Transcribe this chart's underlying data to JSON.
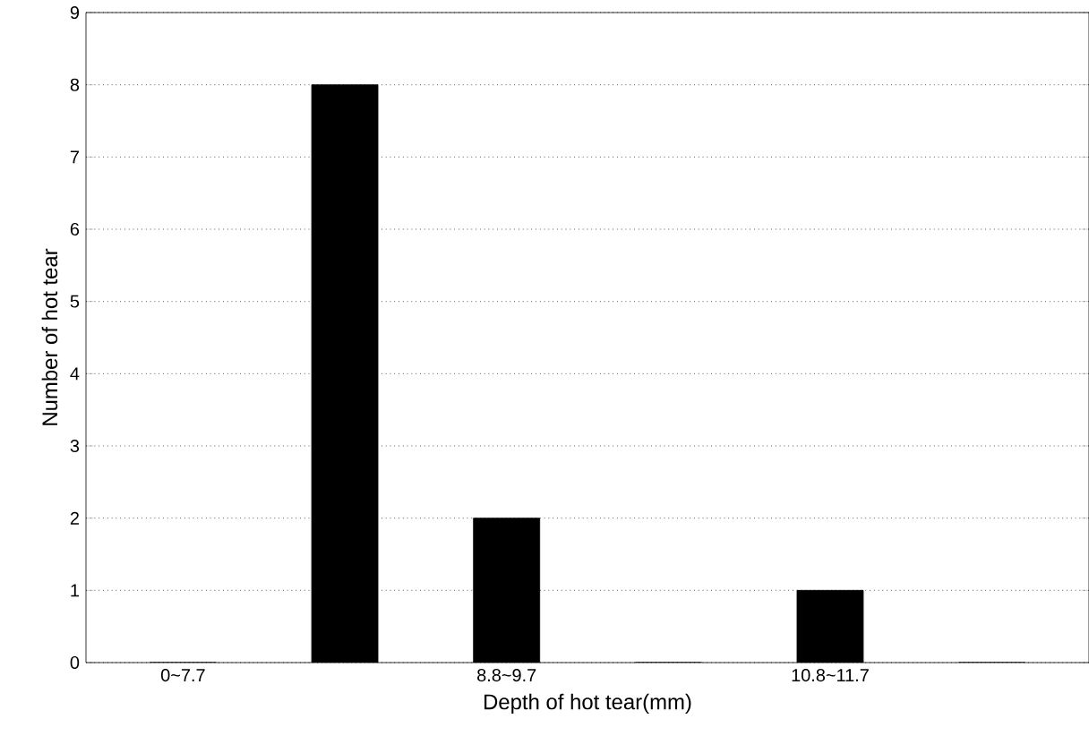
{
  "chart_data": {
    "type": "bar",
    "xlabel": "Depth of hot tear(mm)",
    "ylabel": "Number of hot tear",
    "categories": [
      "0~7.7",
      null,
      "8.8~9.7",
      null,
      "10.8~11.7",
      null
    ],
    "values": [
      0,
      8,
      2,
      0,
      1,
      0
    ],
    "color": "#000000",
    "ylim": [
      0,
      9
    ],
    "yticks": [
      0,
      1,
      2,
      3,
      4,
      5,
      6,
      7,
      8,
      9
    ],
    "grid": "y"
  }
}
